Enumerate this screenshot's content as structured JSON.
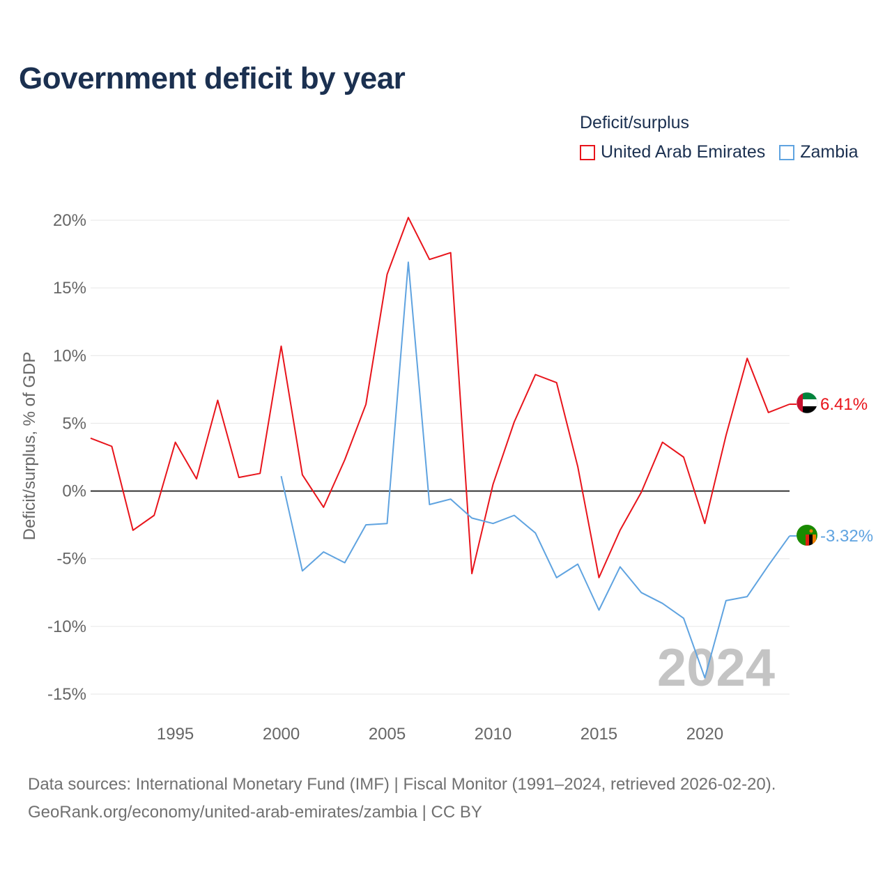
{
  "title": "Government deficit by year",
  "legend": {
    "title": "Deficit/surplus",
    "items": [
      {
        "label": "United Arab Emirates",
        "color": "#e8141b"
      },
      {
        "label": "Zambia",
        "color": "#5fa3e0"
      }
    ]
  },
  "footer": {
    "line1": "Data sources: International Monetary Fund (IMF) | Fiscal Monitor (1991–2024, retrieved 2026-02-20).",
    "line2": "GeoRank.org/economy/united-arab-emirates/zambia | CC BY"
  },
  "chart_data": {
    "type": "line",
    "title": "Government deficit by year",
    "xlabel": "",
    "ylabel": "Deficit/surplus, % of GDP",
    "xlim": [
      1991,
      2024
    ],
    "ylim": [
      -15,
      20
    ],
    "y_ticks": [
      20,
      15,
      10,
      5,
      0,
      -5,
      -10,
      -15
    ],
    "y_tick_labels": [
      "20%",
      "15%",
      "10%",
      "5%",
      "0%",
      "-5%",
      "-10%",
      "-15%"
    ],
    "x_ticks": [
      1995,
      2000,
      2005,
      2010,
      2015,
      2020
    ],
    "x_tick_labels": [
      "1995",
      "2000",
      "2005",
      "2010",
      "2015",
      "2020"
    ],
    "watermark_year": "2024",
    "series": [
      {
        "name": "United Arab Emirates",
        "color": "#e8141b",
        "end_label": "6.41%",
        "x": [
          1991,
          1992,
          1993,
          1994,
          1995,
          1996,
          1997,
          1998,
          1999,
          2000,
          2001,
          2002,
          2003,
          2004,
          2005,
          2006,
          2007,
          2008,
          2009,
          2010,
          2011,
          2012,
          2013,
          2014,
          2015,
          2016,
          2017,
          2018,
          2019,
          2020,
          2021,
          2022,
          2023,
          2024
        ],
        "values": [
          3.9,
          3.3,
          -2.9,
          -1.8,
          3.6,
          0.9,
          6.7,
          1.0,
          1.3,
          10.7,
          1.2,
          -1.2,
          2.3,
          6.4,
          16.0,
          20.2,
          17.1,
          17.6,
          -6.1,
          0.5,
          5.1,
          8.6,
          8.0,
          1.8,
          -6.4,
          -2.9,
          -0.1,
          3.6,
          2.5,
          -2.4,
          4.1,
          9.8,
          5.8,
          6.41
        ]
      },
      {
        "name": "Zambia",
        "color": "#5fa3e0",
        "end_label": "-3.32%",
        "x": [
          2000,
          2001,
          2002,
          2003,
          2004,
          2005,
          2006,
          2007,
          2008,
          2009,
          2010,
          2011,
          2012,
          2013,
          2014,
          2015,
          2016,
          2017,
          2018,
          2019,
          2020,
          2021,
          2022,
          2023,
          2024
        ],
        "values": [
          1.1,
          -5.9,
          -4.5,
          -5.3,
          -2.5,
          -2.4,
          16.9,
          -1.0,
          -0.6,
          -2.0,
          -2.4,
          -1.8,
          -3.1,
          -6.4,
          -5.4,
          -8.8,
          -5.6,
          -7.5,
          -8.3,
          -9.4,
          -13.8,
          -8.1,
          -7.8,
          -5.5,
          -3.32
        ]
      }
    ]
  }
}
